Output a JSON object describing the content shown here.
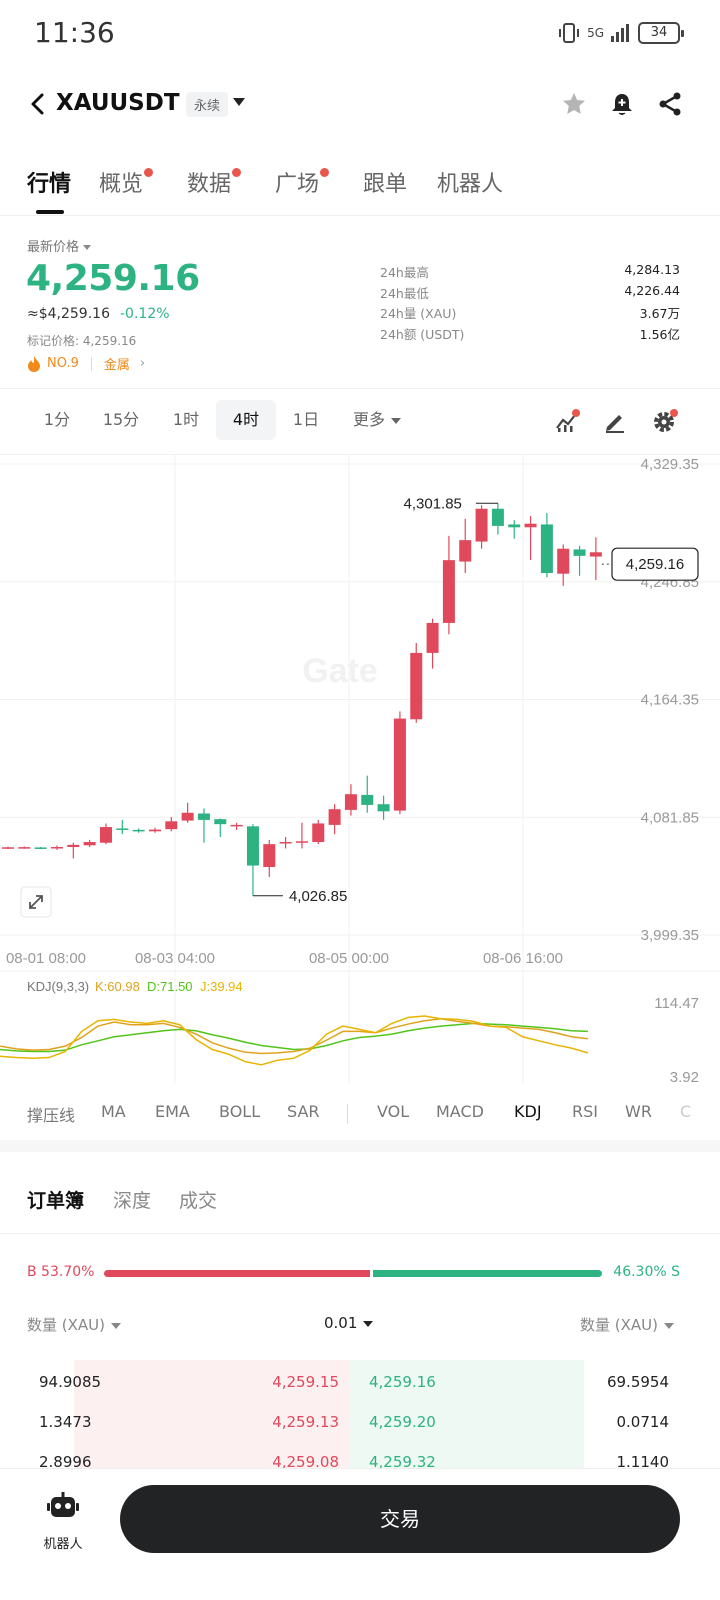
{
  "status_bar": {
    "time": "11:36",
    "network": "5G",
    "battery": "34"
  },
  "header": {
    "symbol": "XAUUSDT",
    "contract_tag": "永续",
    "icons": [
      "back-icon",
      "star-icon",
      "bell-icon",
      "share-icon"
    ]
  },
  "tabs": [
    {
      "label": "行情",
      "active": true,
      "dot": false
    },
    {
      "label": "概览",
      "active": false,
      "dot": true
    },
    {
      "label": "数据",
      "active": false,
      "dot": true
    },
    {
      "label": "广场",
      "active": false,
      "dot": true
    },
    {
      "label": "跟单",
      "active": false,
      "dot": false
    },
    {
      "label": "机器人",
      "active": false,
      "dot": false
    }
  ],
  "ticker": {
    "latest_label": "最新价格",
    "last_price": "4,259.16",
    "usd_price": "≈$4,259.16",
    "change_pct": "-0.12%",
    "mark_price": "标记价格: 4,259.16",
    "rank": "NO.9",
    "category": "金属",
    "stats": [
      {
        "label": "24h最高",
        "value": "4,284.13"
      },
      {
        "label": "24h最低",
        "value": "4,226.44"
      },
      {
        "label": "24h量 (XAU)",
        "value": "3.67万"
      },
      {
        "label": "24h额 (USDT)",
        "value": "1.56亿"
      }
    ]
  },
  "intervals": {
    "items": [
      "1分",
      "15分",
      "1时",
      "4时",
      "1日"
    ],
    "active": "4时",
    "more_label": "更多"
  },
  "colors": {
    "up": "#2db381",
    "down": "#e0495c",
    "accent_dot": "#e8564c",
    "k_line": "#e0a21c",
    "d_line": "#52c41a",
    "j_line": "#e8b400"
  },
  "chart_data": {
    "type": "candlestick",
    "y_ticks": [
      "4,329.35",
      "4,246.85",
      "4,164.35",
      "4,081.85",
      "3,999.35"
    ],
    "ylim": [
      3999.35,
      4329.35
    ],
    "x_ticks": [
      "08-01 08:00",
      "08-03 04:00",
      "08-05 00:00",
      "08-06 16:00"
    ],
    "high_annotation": "4,301.85",
    "low_annotation": "4,026.85",
    "current_price": "4,259.16",
    "watermark": "Gate",
    "candles": [
      [
        4060.5,
        4060.8,
        4059.6,
        4061.2
      ],
      [
        4060.6,
        4060.9,
        4059.8,
        4061.4
      ],
      [
        4060.7,
        4060.4,
        4059.5,
        4061.0
      ],
      [
        4060.2,
        4061.0,
        4059.0,
        4062.0
      ],
      [
        4061.0,
        4062.5,
        4053.0,
        4064.0
      ],
      [
        4062.2,
        4064.5,
        4061.0,
        4066.0
      ],
      [
        4064.0,
        4075.0,
        4063.0,
        4077.5
      ],
      [
        4074.0,
        4073.0,
        4070.0,
        4080.0
      ],
      [
        4073.0,
        4072.5,
        4071.0,
        4074.0
      ],
      [
        4072.0,
        4073.2,
        4071.0,
        4074.5
      ],
      [
        4073.5,
        4079.0,
        4072.0,
        4082.0
      ],
      [
        4079.5,
        4085.0,
        4078.0,
        4092.0
      ],
      [
        4084.5,
        4080.0,
        4064.0,
        4088.0
      ],
      [
        4080.5,
        4077.0,
        4068.0,
        4081.0
      ],
      [
        4076.0,
        4076.5,
        4073.0,
        4078.0
      ],
      [
        4075.5,
        4048.0,
        4026.85,
        4077.0
      ],
      [
        4047.0,
        4063.0,
        4040.0,
        4066.0
      ],
      [
        4063.5,
        4064.5,
        4060.0,
        4068.0
      ],
      [
        4064.0,
        4065.0,
        4060.0,
        4078.0
      ],
      [
        4064.5,
        4077.5,
        4063.0,
        4080.0
      ],
      [
        4076.5,
        4087.5,
        4070.0,
        4091.0
      ],
      [
        4087.0,
        4098.0,
        4083.0,
        4105.0
      ],
      [
        4097.5,
        4090.5,
        4085.0,
        4111.0
      ],
      [
        4091.0,
        4086.0,
        4080.0,
        4097.0
      ],
      [
        4086.5,
        4151.0,
        4084.0,
        4156.0
      ],
      [
        4150.5,
        4197.0,
        4148.0,
        4204.0
      ],
      [
        4197.0,
        4218.0,
        4186.0,
        4221.0
      ],
      [
        4218.0,
        4262.0,
        4210.0,
        4279.0
      ],
      [
        4261.0,
        4276.0,
        4253.0,
        4291.0
      ],
      [
        4275.0,
        4298.0,
        4270.0,
        4300.5
      ],
      [
        4298.0,
        4286.0,
        4280.0,
        4301.85
      ],
      [
        4287.0,
        4285.0,
        4277.0,
        4290.0
      ],
      [
        4285.0,
        4287.5,
        4262.0,
        4293.0
      ],
      [
        4287.0,
        4253.0,
        4250.0,
        4295.0
      ],
      [
        4252.5,
        4270.0,
        4244.0,
        4273.0
      ],
      [
        4269.5,
        4265.0,
        4251.0,
        4272.0
      ],
      [
        4264.5,
        4267.5,
        4248.0,
        4278.0
      ]
    ],
    "kdj": {
      "label": "KDJ(9,3,3)",
      "k_label": "K:60.98",
      "d_label": "D:71.50",
      "j_label": "J:39.94",
      "y_ticks": [
        "114.47",
        "3.92"
      ],
      "ylim": [
        3.92,
        114.47
      ],
      "k": [
        50,
        46,
        44,
        45,
        50,
        63,
        80,
        86,
        82,
        82,
        84,
        78,
        68,
        55,
        47,
        41,
        39,
        40,
        42,
        47,
        59,
        72,
        72,
        70,
        77,
        83,
        88,
        91,
        87,
        84,
        80,
        79,
        77,
        75,
        70,
        64,
        61
      ],
      "d": [
        45,
        43,
        42,
        42,
        44,
        52,
        58,
        64,
        67,
        70,
        73,
        75,
        73,
        67,
        62,
        56,
        51,
        48,
        45,
        46,
        51,
        58,
        63,
        65,
        68,
        73,
        77,
        80,
        82,
        84,
        83,
        82,
        80,
        78,
        76,
        73,
        72
      ],
      "j": [
        35,
        33,
        32,
        33,
        42,
        72,
        88,
        90,
        86,
        84,
        88,
        82,
        60,
        45,
        38,
        27,
        22,
        29,
        32,
        44,
        68,
        80,
        75,
        70,
        84,
        93,
        95,
        91,
        90,
        87,
        80,
        78,
        64,
        58,
        52,
        47,
        40
      ]
    }
  },
  "indicators": {
    "items": [
      "撑压线",
      "MA",
      "EMA",
      "BOLL",
      "SAR",
      "VOL",
      "MACD",
      "KDJ",
      "RSI",
      "WR",
      "C"
    ],
    "active": "KDJ"
  },
  "orderbook": {
    "tabs": [
      "订单簿",
      "深度",
      "成交"
    ],
    "active_tab": "订单簿",
    "buy_ratio": "B 53.70%",
    "sell_ratio": "46.30% S",
    "buy_fraction": 0.537,
    "qty_header_left": "数量 (XAU)",
    "precision": "0.01",
    "qty_header_right": "数量 (XAU)",
    "rows": [
      {
        "bid_qty": "94.9085",
        "bid_price": "4,259.15",
        "ask_price": "4,259.16",
        "ask_qty": "69.5954"
      },
      {
        "bid_qty": "1.3473",
        "bid_price": "4,259.13",
        "ask_price": "4,259.20",
        "ask_qty": "0.0714"
      },
      {
        "bid_qty": "2.8996",
        "bid_price": "4,259.08",
        "ask_price": "4,259.32",
        "ask_qty": "1.1140"
      }
    ]
  },
  "bottom": {
    "robot_label": "机器人",
    "trade_label": "交易"
  }
}
